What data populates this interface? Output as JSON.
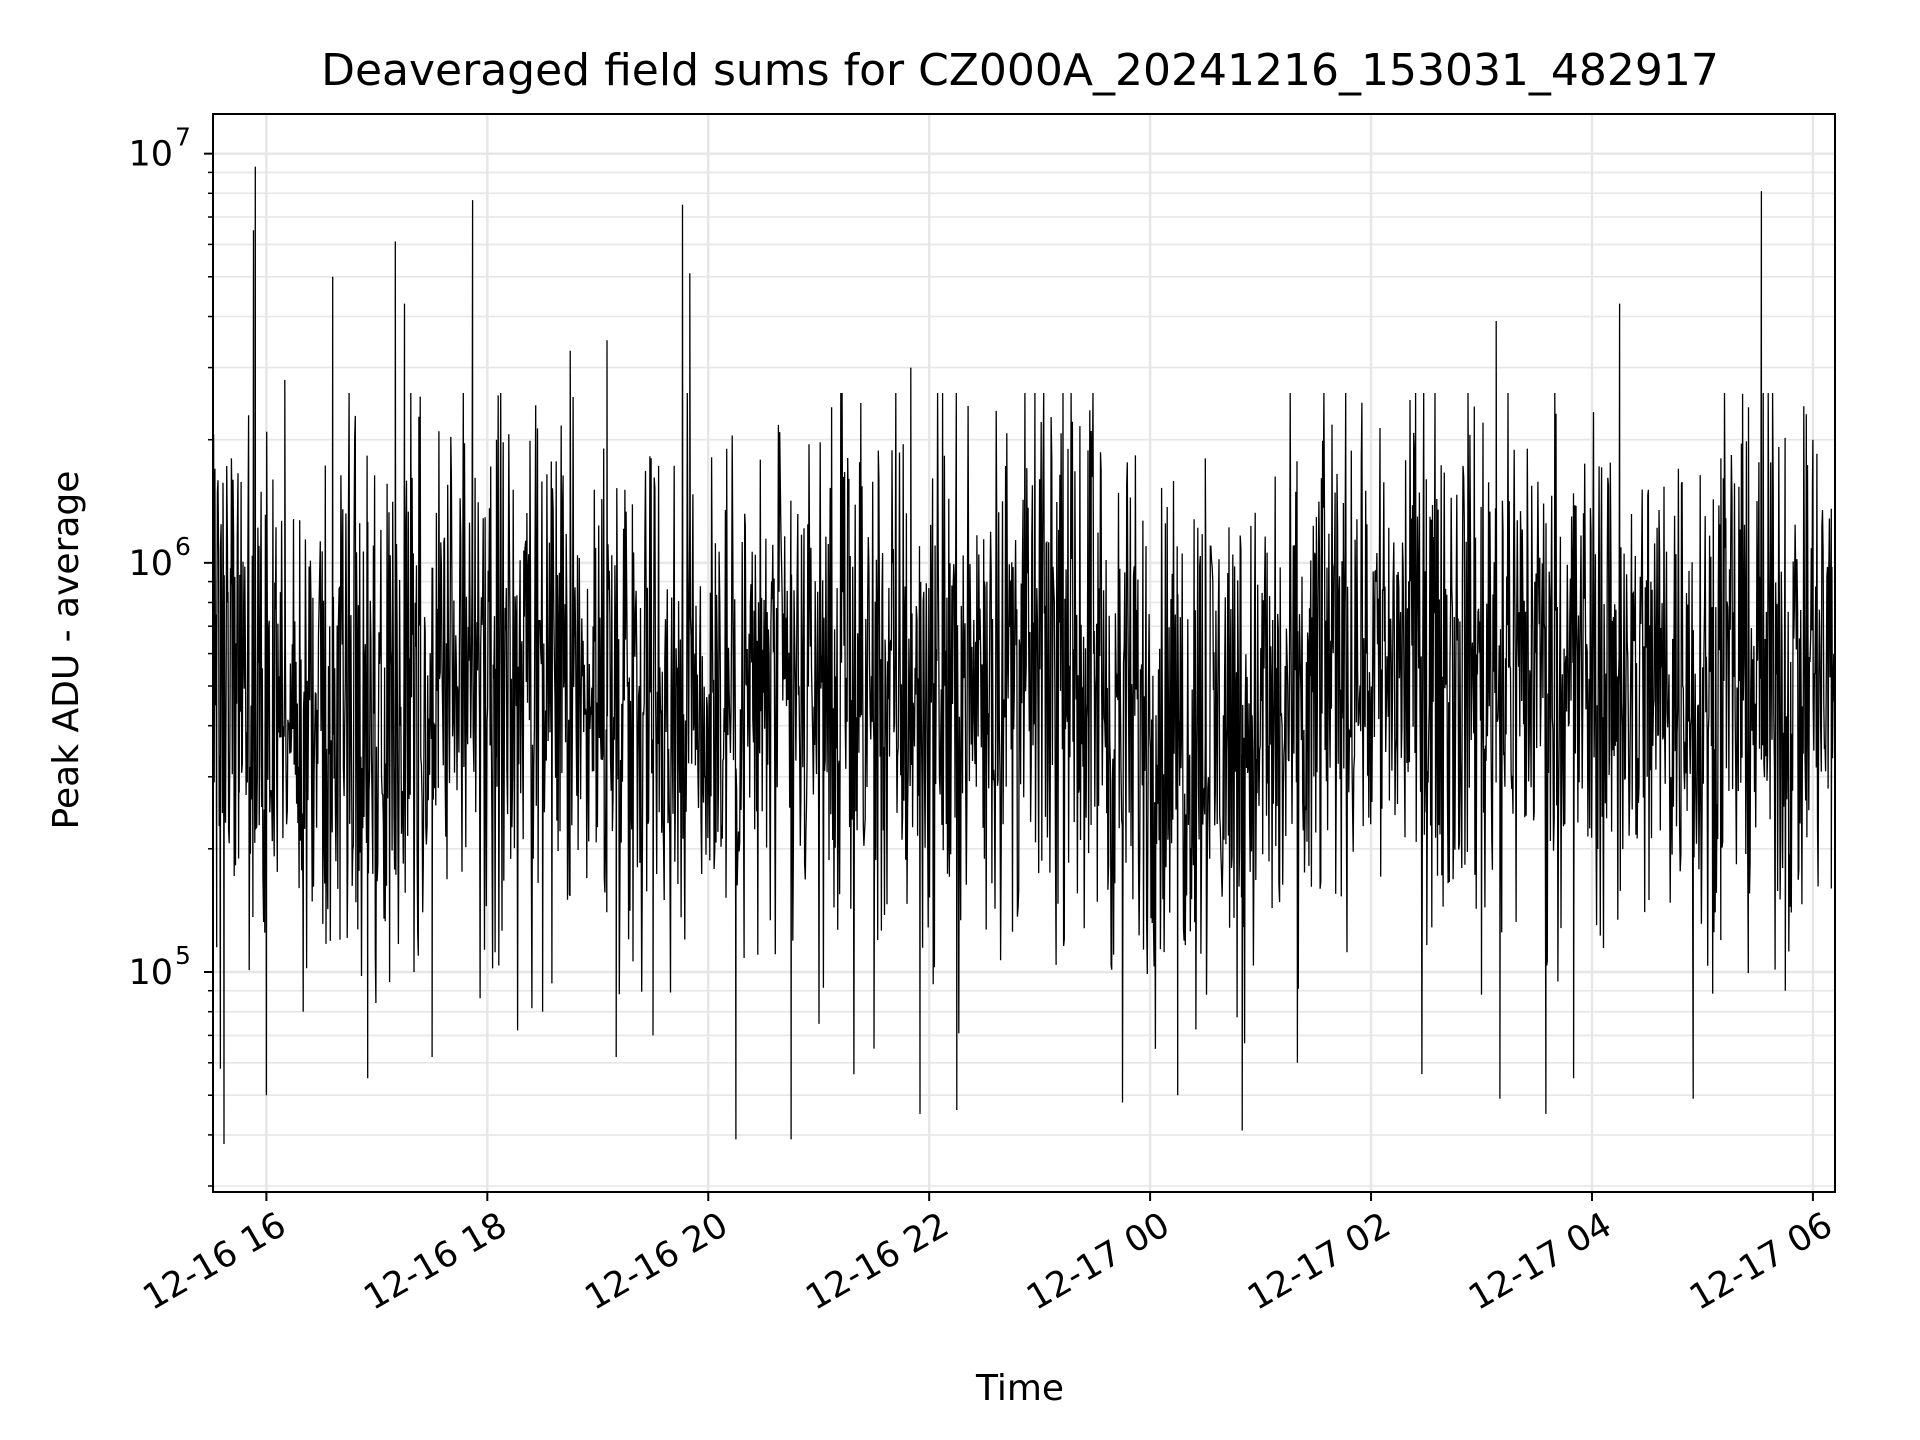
{
  "chart_data": {
    "type": "line",
    "title": "Deaveraged field sums for CZ000A_20241216_153031_482917",
    "xlabel": "Time",
    "ylabel": "Peak ADU - average",
    "yscale": "log",
    "ylim": [
      29000,
      12500000
    ],
    "xlim": [
      "2024-12-16T15:31",
      "2024-12-17T06:12"
    ],
    "grid": true,
    "line_color": "#000000",
    "grid_color": "#e6e6e6",
    "x_ticks": [
      {
        "t": "2024-12-16T16:00",
        "label": "12-16 16"
      },
      {
        "t": "2024-12-16T18:00",
        "label": "12-16 18"
      },
      {
        "t": "2024-12-16T20:00",
        "label": "12-16 20"
      },
      {
        "t": "2024-12-16T22:00",
        "label": "12-16 22"
      },
      {
        "t": "2024-12-17T00:00",
        "label": "12-17 00"
      },
      {
        "t": "2024-12-17T02:00",
        "label": "12-17 02"
      },
      {
        "t": "2024-12-17T04:00",
        "label": "12-17 04"
      },
      {
        "t": "2024-12-17T06:00",
        "label": "12-17 06"
      }
    ],
    "y_ticks": [
      {
        "value": 100000,
        "base": "10",
        "exp": "5"
      },
      {
        "value": 1000000,
        "base": "10",
        "exp": "6"
      },
      {
        "value": 10000000,
        "base": "10",
        "exp": "7"
      }
    ],
    "series": [
      {
        "points": [
          [
            "2024-12-16T15:31",
            900000
          ],
          [
            "2024-12-16T15:33",
            115000
          ],
          [
            "2024-12-16T15:35",
            58000
          ],
          [
            "2024-12-16T15:37",
            38000
          ],
          [
            "2024-12-16T15:39",
            800000
          ],
          [
            "2024-12-16T15:41",
            1800000
          ],
          [
            "2024-12-16T15:45",
            300000
          ],
          [
            "2024-12-16T15:50",
            1200000
          ],
          [
            "2024-12-16T15:53",
            6500000
          ],
          [
            "2024-12-16T15:54",
            9300000
          ],
          [
            "2024-12-16T15:56",
            1100000
          ],
          [
            "2024-12-16T16:00",
            50000
          ],
          [
            "2024-12-16T16:10",
            2800000
          ],
          [
            "2024-12-16T16:20",
            80000
          ],
          [
            "2024-12-16T16:36",
            5000000
          ],
          [
            "2024-12-16T16:40",
            120000
          ],
          [
            "2024-12-16T16:55",
            55000
          ],
          [
            "2024-12-16T17:10",
            6100000
          ],
          [
            "2024-12-16T17:15",
            4300000
          ],
          [
            "2024-12-16T17:30",
            62000
          ],
          [
            "2024-12-16T17:52",
            7700000
          ],
          [
            "2024-12-16T18:05",
            2000000
          ],
          [
            "2024-12-16T18:30",
            80000
          ],
          [
            "2024-12-16T18:45",
            3300000
          ],
          [
            "2024-12-16T19:05",
            3500000
          ],
          [
            "2024-12-16T19:10",
            62000
          ],
          [
            "2024-12-16T19:30",
            70000
          ],
          [
            "2024-12-16T19:46",
            7500000
          ],
          [
            "2024-12-16T19:50",
            5100000
          ],
          [
            "2024-12-16T20:10",
            1900000
          ],
          [
            "2024-12-16T20:15",
            39000
          ],
          [
            "2024-12-16T20:45",
            39000
          ],
          [
            "2024-12-16T21:07",
            2400000
          ],
          [
            "2024-12-16T21:30",
            65000
          ],
          [
            "2024-12-16T21:50",
            3000000
          ],
          [
            "2024-12-16T21:55",
            45000
          ],
          [
            "2024-12-16T22:15",
            46000
          ],
          [
            "2024-12-16T22:30",
            900000
          ],
          [
            "2024-12-16T23:00",
            1600000
          ],
          [
            "2024-12-16T23:28",
            2100000
          ],
          [
            "2024-12-16T23:45",
            48000
          ],
          [
            "2024-12-17T00:15",
            50000
          ],
          [
            "2024-12-17T00:30",
            1800000
          ],
          [
            "2024-12-17T00:50",
            41000
          ],
          [
            "2024-12-17T01:20",
            60000
          ],
          [
            "2024-12-17T01:45",
            1400000
          ],
          [
            "2024-12-17T02:30",
            1600000
          ],
          [
            "2024-12-17T03:00",
            88000
          ],
          [
            "2024-12-17T03:08",
            3900000
          ],
          [
            "2024-12-17T03:10",
            49000
          ],
          [
            "2024-12-17T03:35",
            45000
          ],
          [
            "2024-12-17T03:50",
            55000
          ],
          [
            "2024-12-17T04:15",
            4300000
          ],
          [
            "2024-12-17T04:30",
            300000
          ],
          [
            "2024-12-17T04:55",
            49000
          ],
          [
            "2024-12-17T05:10",
            1800000
          ],
          [
            "2024-12-17T05:25",
            2400000
          ],
          [
            "2024-12-17T05:32",
            8100000
          ],
          [
            "2024-12-17T05:45",
            90000
          ],
          [
            "2024-12-17T06:00",
            2000000
          ],
          [
            "2024-12-17T06:10",
            160000
          ],
          [
            "2024-12-17T06:12",
            950000
          ]
        ]
      }
    ]
  }
}
